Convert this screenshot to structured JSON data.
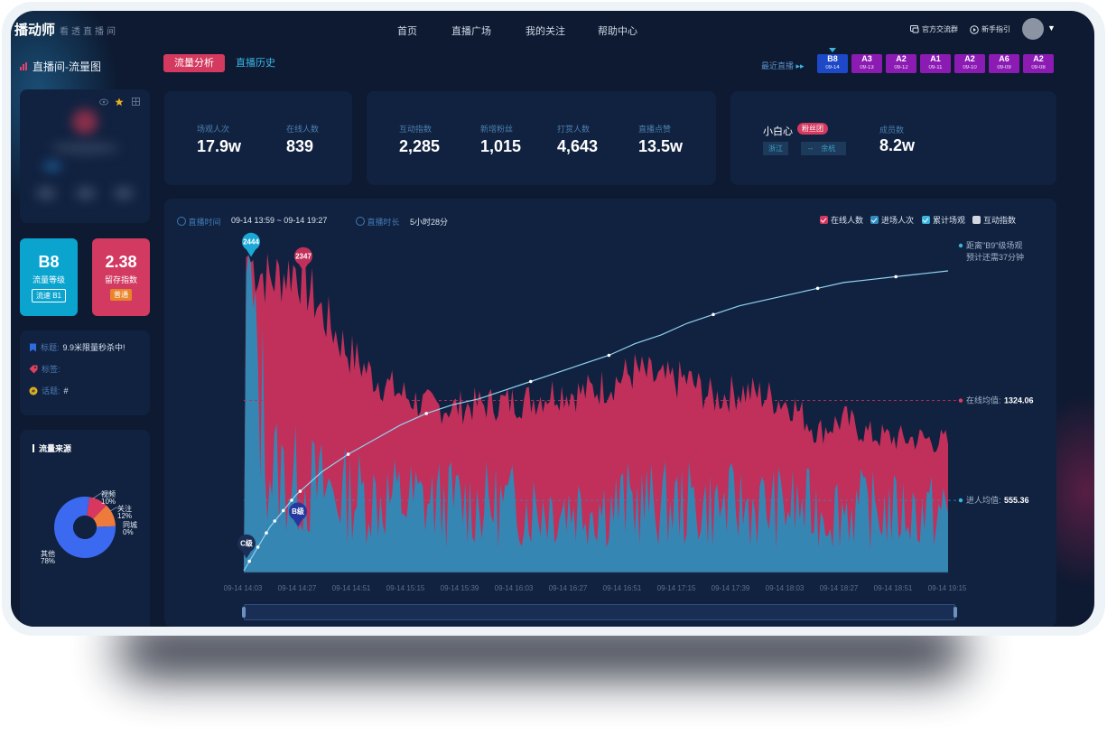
{
  "app": {
    "logo": "播动师",
    "slogan": "看透直播间"
  },
  "nav": [
    {
      "label": "首页"
    },
    {
      "label": "直播广场"
    },
    {
      "label": "我的关注"
    },
    {
      "label": "帮助中心"
    }
  ],
  "header_right": {
    "group": "官方交流群",
    "guide": "新手指引"
  },
  "page": {
    "title": "直播间-流量图"
  },
  "tabs": [
    {
      "label": "流量分析",
      "active": true
    },
    {
      "label": "直播历史",
      "active": false
    }
  ],
  "recent": {
    "label": "最近直播",
    "items": [
      {
        "grade": "B8",
        "date": "09-14",
        "color": "#1d49c8"
      },
      {
        "grade": "A3",
        "date": "09-13",
        "color": "#8c1bb4"
      },
      {
        "grade": "A2",
        "date": "09-12",
        "color": "#8c1bb4"
      },
      {
        "grade": "A1",
        "date": "09-11",
        "color": "#8c1bb4"
      },
      {
        "grade": "A2",
        "date": "09-10",
        "color": "#8c1bb4"
      },
      {
        "grade": "A6",
        "date": "09-09",
        "color": "#8c1bb4"
      },
      {
        "grade": "A2",
        "date": "09-08",
        "color": "#8c1bb4"
      }
    ]
  },
  "stats_a": [
    {
      "label": "场观人次",
      "value": "17.9w"
    },
    {
      "label": "在线人数",
      "value": "839"
    }
  ],
  "stats_b": [
    {
      "label": "互动指数",
      "value": "2,285"
    },
    {
      "label": "新增粉丝",
      "value": "1,015"
    },
    {
      "label": "打赏人数",
      "value": "4,643"
    },
    {
      "label": "直播点赞",
      "value": "13.5w"
    }
  ],
  "anchor": {
    "name": "小白心",
    "badge": "粉丝团",
    "tags": [
      "浙江",
      "--",
      "余杭"
    ],
    "stat_label": "成员数",
    "stat_value": "8.2w"
  },
  "level": {
    "value": "B8",
    "label": "流量等级",
    "tag": "流速 B1",
    "color": "#0aa4cf"
  },
  "retention": {
    "value": "2.38",
    "label": "留存指数",
    "tag": "普通",
    "color": "#d23a62"
  },
  "info": [
    {
      "key": "标题:",
      "value": "9.9米限量秒杀中!",
      "icon": "bookmark-icon",
      "color": "#2f6be0"
    },
    {
      "key": "标签:",
      "value": "",
      "icon": "tag-icon",
      "color": "#e0405b"
    },
    {
      "key": "话题:",
      "value": "#",
      "icon": "topic-icon",
      "color": "#e0b21c"
    }
  ],
  "traffic_source": {
    "title": "流量来源",
    "slices": [
      {
        "name": "视频",
        "percent": 10,
        "label": "10%",
        "color": "#d8385f"
      },
      {
        "name": "关注",
        "percent": 12,
        "label": "12%",
        "color": "#ee7a3c"
      },
      {
        "name": "同城",
        "percent": 0,
        "label": "0%",
        "color": "#e7c34a"
      },
      {
        "name": "其他",
        "percent": 78,
        "label": "78%",
        "color": "#3b69f0"
      }
    ]
  },
  "chart_meta": {
    "time_label": "直播时间",
    "time_value": "09-14 13:59 ~ 09-14 19:27",
    "duration_label": "直播时长",
    "duration_value": "5小时28分"
  },
  "legend": [
    {
      "name": "在线人数",
      "color": "#d3365f",
      "checked": true
    },
    {
      "name": "进场人次",
      "color": "#2f8bc0",
      "checked": true
    },
    {
      "name": "累计场观",
      "color": "#39b4dc",
      "checked": true
    },
    {
      "name": "互动指数",
      "color": "#d3d8e0",
      "checked": false
    }
  ],
  "chart_data": {
    "type": "area",
    "x_ticks": [
      "09-14 14:03",
      "09-14 14:27",
      "09-14 14:51",
      "09-14 15:15",
      "09-14 15:39",
      "09-14 16:03",
      "09-14 16:27",
      "09-14 16:51",
      "09-14 17:15",
      "09-14 17:39",
      "09-14 18:03",
      "09-14 18:27",
      "09-14 18:51",
      "09-14 19:15"
    ],
    "series": [
      {
        "name": "在线人数",
        "color": "#c0305a",
        "values": [
          2444,
          2250,
          2347,
          2000,
          1700,
          1500,
          1380,
          1280,
          1270,
          1290,
          1310,
          1330,
          1400,
          1380,
          1450,
          1550,
          1470,
          1480,
          1340,
          1400,
          1360,
          1300,
          1080,
          1180,
          1060,
          1030,
          1030,
          1000
        ]
      },
      {
        "name": "进场人次",
        "color": "#2d8bb8",
        "values": [
          2444,
          800,
          700,
          640,
          600,
          580,
          560,
          540,
          540,
          530,
          520,
          520,
          510,
          520,
          510,
          540,
          520,
          530,
          500,
          520,
          500,
          510,
          480,
          500,
          480,
          470,
          470,
          460
        ]
      },
      {
        "name": "累计场观",
        "color": "#7fd1f0",
        "values": [
          0,
          15,
          26,
          34,
          40,
          45,
          50,
          54,
          57,
          59,
          62,
          65,
          68,
          71,
          74,
          78,
          81,
          85,
          88,
          91,
          93,
          95,
          97,
          99,
          100,
          101,
          102,
          103
        ]
      }
    ],
    "markers": [
      {
        "label": "2444",
        "color": "#1aa9d6"
      },
      {
        "label": "2347",
        "color": "#c0305a"
      },
      {
        "label": "B级",
        "color": "#25389e"
      },
      {
        "label": "C级",
        "color": "#1b2e55"
      }
    ],
    "annotations": {
      "target_line1": "距离\"B9\"级场观",
      "target_line2": "预计还需37分钟",
      "online_avg_label": "在线均值:",
      "online_avg_value": "1324.06",
      "enter_avg_label": "进人均值:",
      "enter_avg_value": "555.36"
    }
  }
}
